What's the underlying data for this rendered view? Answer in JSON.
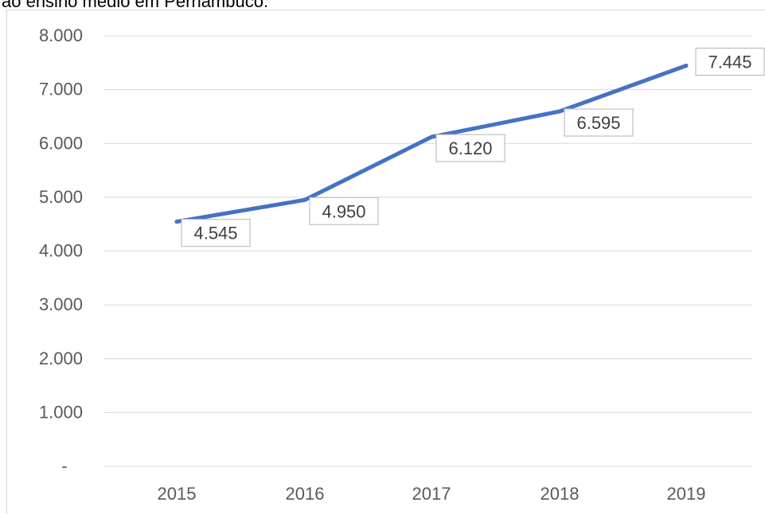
{
  "caption": "ao ensino médio em Pernambuco.",
  "chart_data": {
    "type": "line",
    "title": "",
    "xlabel": "",
    "ylabel": "",
    "categories": [
      "2015",
      "2016",
      "2017",
      "2018",
      "2019"
    ],
    "series": [
      {
        "values": [
          4545,
          4950,
          6120,
          6595,
          7445
        ],
        "labels": [
          "4.545",
          "4.950",
          "6.120",
          "6.595",
          "7.445"
        ]
      }
    ],
    "ylim": [
      0,
      8000
    ],
    "yticks": [
      0,
      1000,
      2000,
      3000,
      4000,
      5000,
      6000,
      7000,
      8000
    ],
    "ytick_labels": [
      "-",
      "1.000",
      "2.000",
      "3.000",
      "4.000",
      "5.000",
      "6.000",
      "7.000",
      "8.000"
    ],
    "grid": true,
    "legend": "none",
    "line_color": "#4472c4"
  }
}
